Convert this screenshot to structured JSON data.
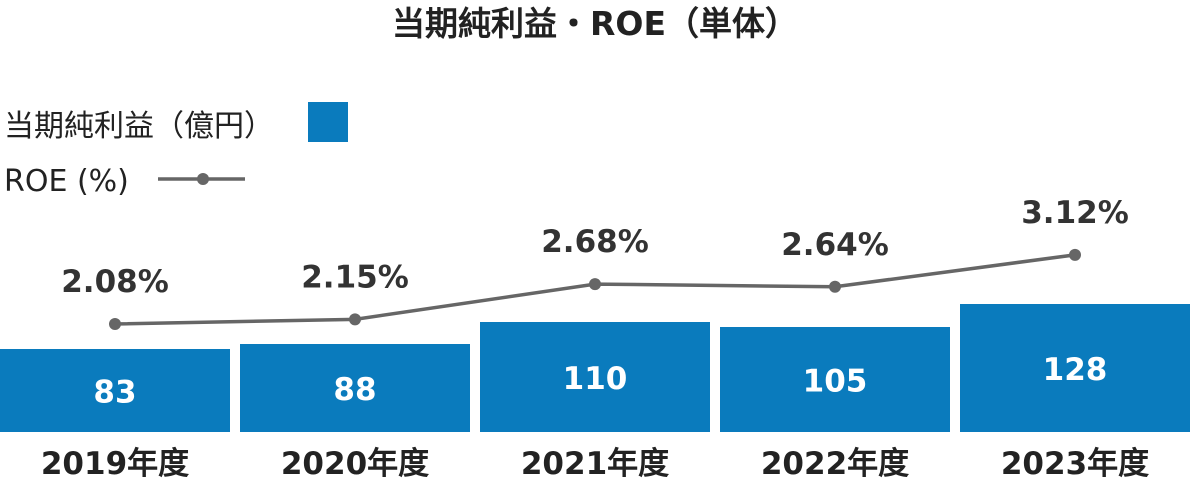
{
  "chart_data": {
    "type": "bar",
    "title": "当期純利益・ROE（単体）",
    "categories": [
      "2019年度",
      "2020年度",
      "2021年度",
      "2022年度",
      "2023年度"
    ],
    "series": [
      {
        "name": "当期純利益（億円）",
        "type": "bar",
        "values": [
          83,
          88,
          110,
          105,
          128
        ],
        "labels": [
          "83",
          "88",
          "110",
          "105",
          "128"
        ]
      },
      {
        "name": "ROE (%)",
        "type": "line",
        "values": [
          2.08,
          2.15,
          2.68,
          2.64,
          3.12
        ],
        "labels": [
          "2.08%",
          "2.15%",
          "2.68%",
          "2.64%",
          "3.12%"
        ]
      }
    ],
    "legend_placement": "top-left",
    "grid": false,
    "colors": {
      "bar": "#0a7bbd",
      "line": "#666666",
      "marker": "#666666"
    }
  }
}
